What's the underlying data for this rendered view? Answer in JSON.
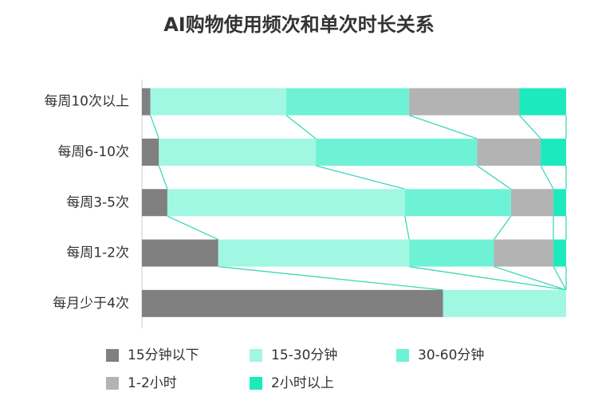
{
  "chart_data": {
    "type": "stacked-bar-horizontal",
    "title": "AI购物使用频次和单次时长关系",
    "categories": [
      "每周10次以上",
      "每周6-10次",
      "每周3-5次",
      "每周1-2次",
      "每月少于4次"
    ],
    "xlim": [
      0,
      100
    ],
    "series": [
      {
        "name": "15分钟以下",
        "color": "#808080",
        "values": [
          2,
          4,
          6,
          18,
          71
        ]
      },
      {
        "name": "15-30分钟",
        "color": "#a0f7e2",
        "values": [
          32,
          37,
          56,
          45,
          29
        ]
      },
      {
        "name": "30-60分钟",
        "color": "#6ef2d5",
        "values": [
          29,
          38,
          25,
          20,
          0
        ]
      },
      {
        "name": "1-2小时",
        "color": "#b3b3b3",
        "values": [
          26,
          15,
          10,
          14,
          0
        ]
      },
      {
        "name": "2小时以上",
        "color": "#1de9bf",
        "values": [
          11,
          6,
          3,
          3,
          0
        ]
      }
    ],
    "connector_color": "#3cd9b7"
  }
}
